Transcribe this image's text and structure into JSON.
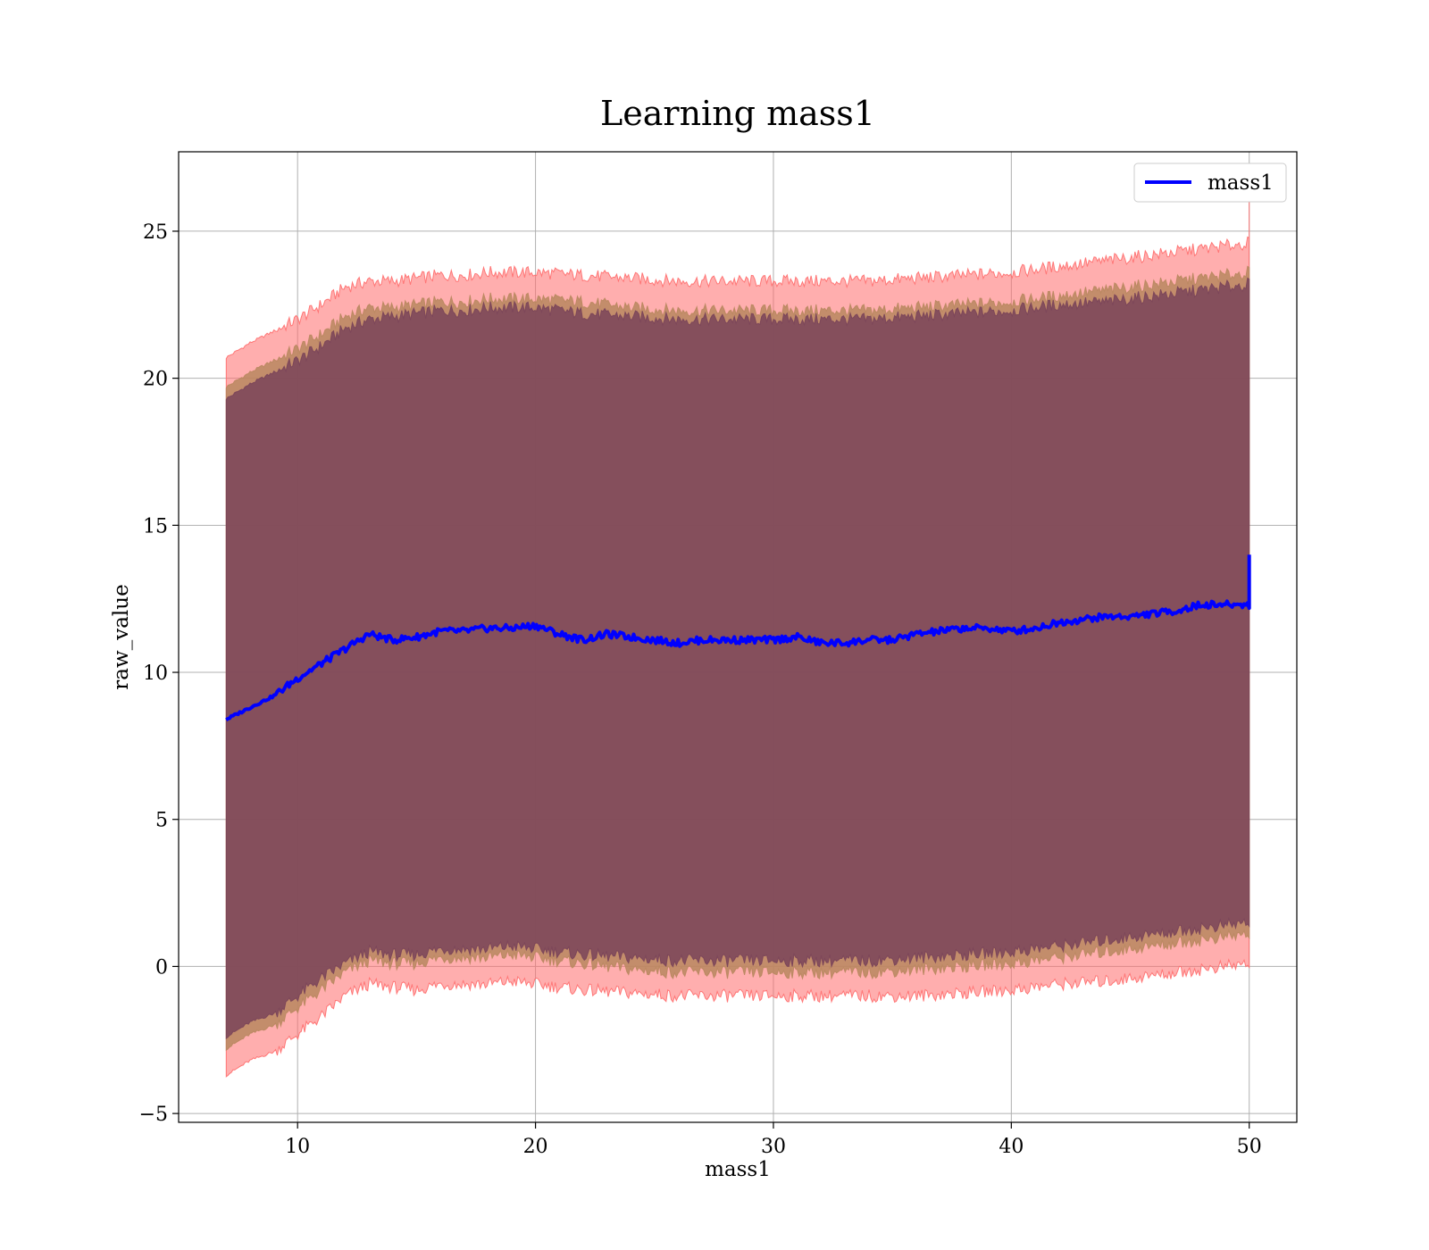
{
  "chart_data": {
    "type": "line",
    "title": "Learning mass1",
    "xlabel": "mass1",
    "ylabel": "raw_value",
    "xlim": [
      5,
      52
    ],
    "ylim": [
      -5.3,
      27.7
    ],
    "xticks": [
      10,
      20,
      30,
      40,
      50
    ],
    "yticks": [
      -5,
      0,
      5,
      10,
      15,
      20,
      25
    ],
    "xtick_labels": [
      "10",
      "20",
      "30",
      "40",
      "50"
    ],
    "ytick_labels": [
      "−5",
      "0",
      "5",
      "10",
      "15",
      "20",
      "25"
    ],
    "grid": true,
    "legend": {
      "position": "top-right",
      "entries": [
        "mass1"
      ]
    },
    "colors": {
      "line": "#0000ff",
      "band_outer": "#ff6b6b",
      "band_middle": "#b9875f",
      "band_inner": "#7a4459"
    },
    "series": [
      {
        "name": "mass1",
        "x": [
          7,
          8,
          9,
          10,
          11,
          12,
          13,
          14,
          15,
          16,
          17,
          18,
          19,
          20,
          21,
          22,
          23,
          24,
          25,
          26,
          27,
          28,
          29,
          30,
          31,
          32,
          33,
          34,
          35,
          36,
          37,
          38,
          39,
          40,
          41,
          42,
          43,
          44,
          45,
          46,
          47,
          48,
          49,
          50
        ],
        "y": [
          8.4,
          8.8,
          9.2,
          9.8,
          10.3,
          10.8,
          11.3,
          11.1,
          11.2,
          11.4,
          11.4,
          11.5,
          11.5,
          11.6,
          11.3,
          11.1,
          11.3,
          11.2,
          11.1,
          11.0,
          11.1,
          11.1,
          11.1,
          11.1,
          11.2,
          11.0,
          11.0,
          11.1,
          11.1,
          11.3,
          11.4,
          11.5,
          11.5,
          11.4,
          11.5,
          11.7,
          11.8,
          11.9,
          11.9,
          12.0,
          12.1,
          12.3,
          12.3,
          12.3
        ]
      }
    ],
    "bands": [
      {
        "level": "outer",
        "x": [
          7,
          8,
          9,
          10,
          11,
          12,
          13,
          14,
          15,
          16,
          17,
          18,
          19,
          20,
          22,
          24,
          26,
          28,
          30,
          32,
          34,
          36,
          38,
          40,
          42,
          44,
          46,
          48,
          50
        ],
        "upper": [
          20.7,
          21.2,
          21.6,
          22.0,
          22.5,
          23.1,
          23.3,
          23.3,
          23.4,
          23.5,
          23.5,
          23.6,
          23.6,
          23.6,
          23.5,
          23.4,
          23.3,
          23.3,
          23.3,
          23.3,
          23.3,
          23.4,
          23.5,
          23.6,
          23.8,
          24.0,
          24.2,
          24.4,
          24.6
        ],
        "lower": [
          -3.7,
          -3.2,
          -2.9,
          -2.3,
          -1.7,
          -1.0,
          -0.6,
          -0.7,
          -0.8,
          -0.6,
          -0.6,
          -0.6,
          -0.5,
          -0.6,
          -0.8,
          -0.9,
          -1.0,
          -1.0,
          -1.0,
          -1.0,
          -1.0,
          -1.0,
          -0.9,
          -0.8,
          -0.6,
          -0.5,
          -0.3,
          -0.1,
          0.1
        ]
      },
      {
        "level": "middle",
        "x": [
          7,
          8,
          9,
          10,
          11,
          12,
          13,
          14,
          15,
          16,
          17,
          18,
          19,
          20,
          22,
          24,
          26,
          28,
          30,
          32,
          34,
          36,
          38,
          40,
          42,
          44,
          46,
          48,
          50
        ],
        "upper": [
          19.7,
          20.2,
          20.6,
          21.0,
          21.5,
          22.1,
          22.4,
          22.4,
          22.5,
          22.6,
          22.6,
          22.7,
          22.7,
          22.7,
          22.6,
          22.4,
          22.3,
          22.3,
          22.3,
          22.3,
          22.3,
          22.4,
          22.5,
          22.6,
          22.8,
          23.0,
          23.2,
          23.4,
          23.6
        ],
        "lower": [
          -2.8,
          -2.3,
          -2.0,
          -1.4,
          -0.8,
          -0.2,
          0.2,
          0.1,
          0.1,
          0.3,
          0.3,
          0.3,
          0.4,
          0.3,
          0.1,
          -0.1,
          -0.2,
          -0.2,
          -0.2,
          -0.2,
          -0.2,
          -0.1,
          0.0,
          0.1,
          0.3,
          0.5,
          0.7,
          0.9,
          1.1
        ]
      },
      {
        "level": "inner",
        "x": [
          7,
          8,
          9,
          10,
          11,
          12,
          13,
          14,
          15,
          16,
          17,
          18,
          19,
          20,
          22,
          24,
          26,
          28,
          30,
          32,
          34,
          36,
          38,
          40,
          42,
          44,
          46,
          48,
          50
        ],
        "upper": [
          19.3,
          19.8,
          20.2,
          20.6,
          21.1,
          21.7,
          22.0,
          22.1,
          22.2,
          22.3,
          22.3,
          22.4,
          22.4,
          22.4,
          22.2,
          22.1,
          22.0,
          22.0,
          22.0,
          22.0,
          22.0,
          22.1,
          22.2,
          22.3,
          22.5,
          22.6,
          22.8,
          23.0,
          23.2
        ],
        "lower": [
          -2.4,
          -1.9,
          -1.6,
          -1.0,
          -0.4,
          0.1,
          0.5,
          0.4,
          0.4,
          0.6,
          0.6,
          0.6,
          0.7,
          0.6,
          0.4,
          0.3,
          0.2,
          0.2,
          0.2,
          0.2,
          0.2,
          0.3,
          0.4,
          0.5,
          0.7,
          0.9,
          1.1,
          1.3,
          1.5
        ]
      }
    ],
    "final_spike": {
      "x": 50,
      "y_line": 14.0,
      "y_band_top": 26.2
    }
  }
}
